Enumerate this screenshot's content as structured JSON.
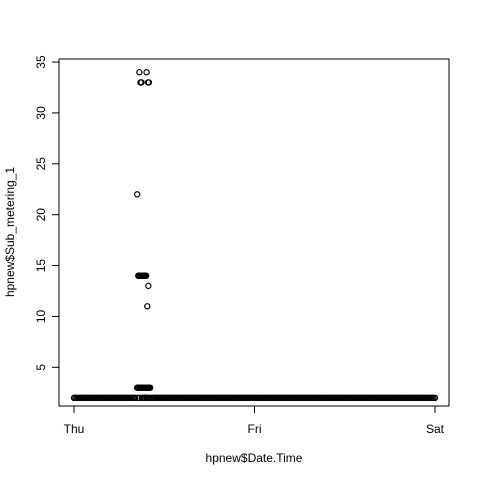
{
  "chart_data": {
    "type": "scatter",
    "title": "",
    "xlabel": "hpnew$Date.Time",
    "ylabel": "hpnew$Sub_metering_1",
    "x_axis": {
      "kind": "date",
      "ticks": [
        "Thu",
        "Fri",
        "Sat"
      ],
      "range": [
        "Thu",
        "Sat"
      ]
    },
    "y_axis": {
      "ticks": [
        5,
        10,
        15,
        20,
        25,
        30,
        35
      ],
      "range": [
        1.2,
        35.3
      ]
    },
    "grid": false,
    "legend": "none",
    "marker": "open-circle",
    "points": {
      "x_days_from_thu": [
        0.352,
        0.361,
        0.362,
        0.368,
        0.37,
        0.374,
        0.376,
        0.38,
        0.385,
        0.39,
        0.392,
        0.4,
        0.402,
        0.41,
        0.415,
        0.42,
        0.35,
        0.356,
        0.36,
        0.365,
        0.37,
        0.375,
        0.38,
        0.385,
        0.39,
        0.395,
        0.4,
        0.406,
        0.412,
        0.35,
        0.355,
        0.362,
        0.366,
        0.371,
        0.376,
        0.381,
        0.386,
        0.392,
        0.398,
        0.404,
        0.41,
        0.416,
        0.422,
        0.405,
        0.412
      ],
      "y": [
        2,
        2,
        34,
        33,
        33,
        33,
        2,
        2,
        2,
        2,
        2,
        2,
        34,
        33,
        33,
        2,
        22,
        14,
        14,
        14,
        14,
        14,
        14,
        14,
        14,
        14,
        14,
        11,
        13,
        3,
        3,
        3,
        3,
        3,
        3,
        3,
        3,
        3,
        3,
        3,
        3,
        3,
        3,
        2,
        2
      ]
    },
    "baseline": {
      "y": 2,
      "from": "Thu",
      "to": "Sat"
    }
  }
}
